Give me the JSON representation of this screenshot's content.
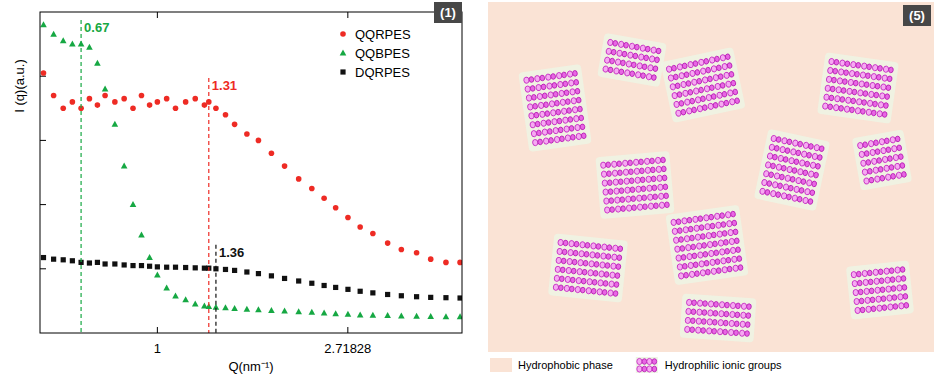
{
  "chart_data": {
    "type": "scatter",
    "panel_label": "(1)",
    "x_label": "Q(nm⁻¹)",
    "y_label": "I (q)(a.u.)",
    "log": "x",
    "xlim": [
      0.54,
      4.95
    ],
    "ylim": [
      0,
      10
    ],
    "xticks": [
      1,
      2.71828
    ],
    "yticks": [
      2,
      4,
      6,
      8
    ],
    "tick_labels": "x",
    "legend": "upper right",
    "x": [
      0.55,
      0.58,
      0.61,
      0.64,
      0.67,
      0.7,
      0.73,
      0.76,
      0.8,
      0.84,
      0.88,
      0.92,
      0.96,
      1.0,
      1.05,
      1.1,
      1.16,
      1.22,
      1.28,
      1.31,
      1.36,
      1.43,
      1.5,
      1.6,
      1.7,
      1.82,
      1.95,
      2.1,
      2.25,
      2.4,
      2.55,
      2.72,
      2.9,
      3.1,
      3.35,
      3.6,
      3.9,
      4.2,
      4.55,
      4.9
    ],
    "series": [
      {
        "name": "QQRPES",
        "color": "#ee2b24",
        "marker": "circle",
        "values": [
          8.1,
          7.4,
          7.0,
          7.2,
          7.0,
          7.3,
          7.1,
          7.4,
          7.2,
          7.3,
          7.0,
          7.4,
          7.1,
          7.2,
          7.3,
          7.0,
          7.2,
          7.3,
          7.1,
          7.2,
          7.0,
          6.8,
          6.5,
          6.2,
          6.0,
          5.6,
          5.2,
          4.8,
          4.5,
          4.2,
          3.9,
          3.6,
          3.3,
          3.1,
          2.8,
          2.6,
          2.5,
          2.3,
          2.2,
          2.2
        ]
      },
      {
        "name": "QQBPES",
        "color": "#16a843",
        "marker": "triangle",
        "values": [
          9.6,
          9.3,
          9.1,
          9.0,
          9.0,
          8.9,
          8.4,
          7.6,
          6.5,
          5.2,
          4.0,
          3.05,
          2.35,
          1.8,
          1.4,
          1.15,
          1.03,
          0.9,
          0.84,
          0.82,
          0.8,
          0.78,
          0.76,
          0.74,
          0.72,
          0.7,
          0.68,
          0.66,
          0.64,
          0.62,
          0.6,
          0.58,
          0.56,
          0.55,
          0.54,
          0.53,
          0.52,
          0.51,
          0.5,
          0.5
        ]
      },
      {
        "name": "DQRPES",
        "color": "#111111",
        "marker": "square",
        "values": [
          2.35,
          2.3,
          2.28,
          2.25,
          2.2,
          2.18,
          2.2,
          2.15,
          2.15,
          2.12,
          2.1,
          2.1,
          2.08,
          2.06,
          2.05,
          2.05,
          2.04,
          2.03,
          2.02,
          2.02,
          2.0,
          1.98,
          1.95,
          1.9,
          1.85,
          1.78,
          1.7,
          1.62,
          1.55,
          1.48,
          1.42,
          1.36,
          1.3,
          1.25,
          1.2,
          1.16,
          1.13,
          1.11,
          1.1,
          1.09
        ]
      }
    ],
    "annotations": [
      {
        "text": "0.67",
        "x": 0.67,
        "series": "QQBPES"
      },
      {
        "text": "1.31",
        "x": 1.31,
        "series": "QQRPES"
      },
      {
        "text": "1.36",
        "x": 1.36,
        "series": "DQRPES"
      }
    ]
  },
  "diagram": {
    "panel_label": "(5)",
    "legend": [
      {
        "text": "Hydrophobic phase"
      },
      {
        "text": "Hydrophilic ionic groups"
      }
    ]
  }
}
